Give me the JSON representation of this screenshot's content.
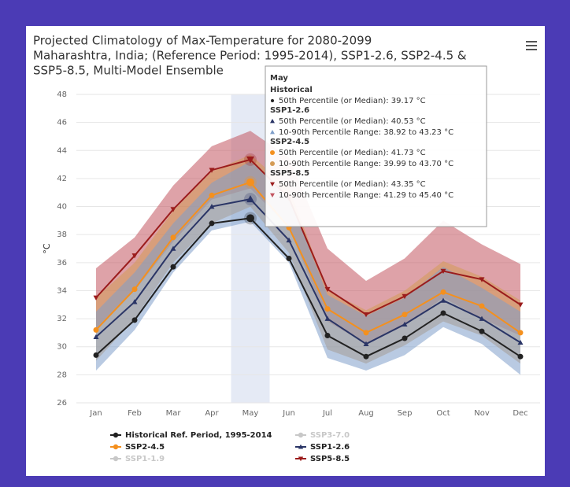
{
  "chart_data": {
    "type": "line",
    "title": [
      "Projected Climatology of Max-Temperature for 2080-2099",
      "Maharashtra, India; (Reference Period: 1995-2014), SSP1-2.6, SSP2-4.5 &",
      "SSP5-8.5, Multi-Model Ensemble"
    ],
    "y_label": "°C",
    "categories": [
      "Jan",
      "Feb",
      "Mar",
      "Apr",
      "May",
      "Jun",
      "Jul",
      "Aug",
      "Sep",
      "Oct",
      "Nov",
      "Dec"
    ],
    "ylim": [
      26,
      48
    ],
    "yticks": [
      26,
      28,
      30,
      32,
      34,
      36,
      38,
      40,
      42,
      44,
      46,
      48
    ],
    "grid": true,
    "highlight_category": 4,
    "series": [
      {
        "name": "Historical Ref. Period, 1995-2014",
        "color": "#222222",
        "marker": "circle",
        "values": [
          29.4,
          31.9,
          35.7,
          38.8,
          39.17,
          36.3,
          30.8,
          29.3,
          30.6,
          32.4,
          31.1,
          29.3
        ]
      },
      {
        "name": "SSP1-2.6",
        "color": "#2a3566",
        "marker": "triangle",
        "band_color": "#7f9fca",
        "values": [
          30.7,
          33.2,
          37.0,
          40.0,
          40.53,
          37.6,
          32.0,
          30.2,
          31.6,
          33.3,
          32.0,
          30.3
        ],
        "low": [
          28.3,
          31.2,
          35.3,
          38.3,
          38.92,
          36.0,
          29.2,
          28.3,
          29.4,
          31.4,
          30.2,
          28.0
        ],
        "high": [
          32.5,
          35.3,
          38.8,
          41.7,
          43.23,
          40.7,
          33.7,
          32.2,
          33.5,
          35.7,
          34.2,
          32.5
        ]
      },
      {
        "name": "SSP2-4.5",
        "color": "#f4901e",
        "marker": "circle",
        "band_color": "#d49a55",
        "values": [
          31.2,
          34.1,
          37.8,
          40.8,
          41.73,
          38.5,
          32.7,
          31.0,
          32.3,
          33.9,
          32.9,
          31.0
        ],
        "low": [
          29.0,
          32.0,
          36.0,
          38.8,
          39.99,
          36.7,
          29.8,
          28.8,
          30.1,
          31.8,
          30.8,
          28.8
        ],
        "high": [
          33.5,
          36.0,
          39.7,
          42.5,
          43.7,
          41.3,
          34.0,
          32.6,
          34.0,
          36.1,
          35.0,
          33.3
        ]
      },
      {
        "name": "SSP5-8.5",
        "color": "#9b1c1c",
        "marker": "triangle-down",
        "band_color": "#c25560",
        "values": [
          33.5,
          36.5,
          39.8,
          42.6,
          43.35,
          40.6,
          34.1,
          32.3,
          33.6,
          35.4,
          34.8,
          33.0
        ],
        "low": [
          31.2,
          34.0,
          37.5,
          40.5,
          41.29,
          38.5,
          31.8,
          30.2,
          31.5,
          33.5,
          32.0,
          30.8
        ],
        "high": [
          35.6,
          37.8,
          41.5,
          44.3,
          45.4,
          43.5,
          37.0,
          34.7,
          36.3,
          39.0,
          37.3,
          35.9
        ]
      }
    ],
    "hidden_series": [
      {
        "name": "SSP1-1.9",
        "color": "#c8c8c8"
      },
      {
        "name": "SSP3-7.0",
        "color": "#c8c8c8"
      }
    ],
    "tooltip": {
      "title": "May",
      "sections": [
        {
          "name": "Historical",
          "series": 0,
          "lines": [
            {
              "kind": "median",
              "text": "50th Percentile (or Median): 39.17 °C"
            }
          ]
        },
        {
          "name": "SSP1-2.6",
          "series": 1,
          "lines": [
            {
              "kind": "median",
              "text": "50th Percentile (or Median): 40.53 °C"
            },
            {
              "kind": "range",
              "text": "10-90th Percentile Range: 38.92 to 43.23 °C"
            }
          ]
        },
        {
          "name": "SSP2-4.5",
          "series": 2,
          "lines": [
            {
              "kind": "median",
              "text": "50th Percentile (or Median): 41.73 °C"
            },
            {
              "kind": "range",
              "text": "10-90th Percentile Range: 39.99 to 43.70 °C"
            }
          ]
        },
        {
          "name": "SSP5-8.5",
          "series": 3,
          "lines": [
            {
              "kind": "median",
              "text": "50th Percentile (or Median): 43.35 °C"
            },
            {
              "kind": "range",
              "text": "10-90th Percentile Range: 41.29 to 45.40 °C"
            }
          ]
        }
      ]
    }
  }
}
